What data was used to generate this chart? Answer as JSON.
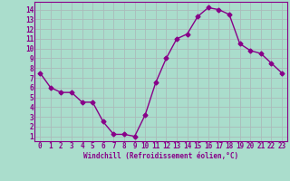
{
  "x": [
    0,
    1,
    2,
    3,
    4,
    5,
    6,
    7,
    8,
    9,
    10,
    11,
    12,
    13,
    14,
    15,
    16,
    17,
    18,
    19,
    20,
    21,
    22,
    23
  ],
  "y": [
    7.5,
    6.0,
    5.5,
    5.5,
    4.5,
    4.5,
    2.5,
    1.2,
    1.2,
    1.0,
    3.2,
    6.5,
    9.0,
    11.0,
    11.5,
    13.3,
    14.2,
    14.0,
    13.5,
    10.5,
    9.8,
    9.5,
    8.5,
    7.5
  ],
  "line_color": "#880088",
  "marker": "D",
  "marker_size": 2.5,
  "bg_color": "#aaddcc",
  "grid_color": "#aabbbb",
  "axis_label_color": "#880088",
  "tick_color": "#880088",
  "xlabel": "Windchill (Refroidissement éolien,°C)",
  "ylim": [
    0.5,
    14.8
  ],
  "xlim": [
    -0.5,
    23.5
  ],
  "yticks": [
    1,
    2,
    3,
    4,
    5,
    6,
    7,
    8,
    9,
    10,
    11,
    12,
    13,
    14
  ],
  "xticks": [
    0,
    1,
    2,
    3,
    4,
    5,
    6,
    7,
    8,
    9,
    10,
    11,
    12,
    13,
    14,
    15,
    16,
    17,
    18,
    19,
    20,
    21,
    22,
    23
  ],
  "xlabel_fontsize": 5.5,
  "tick_fontsize": 5.5,
  "linewidth": 1.0
}
